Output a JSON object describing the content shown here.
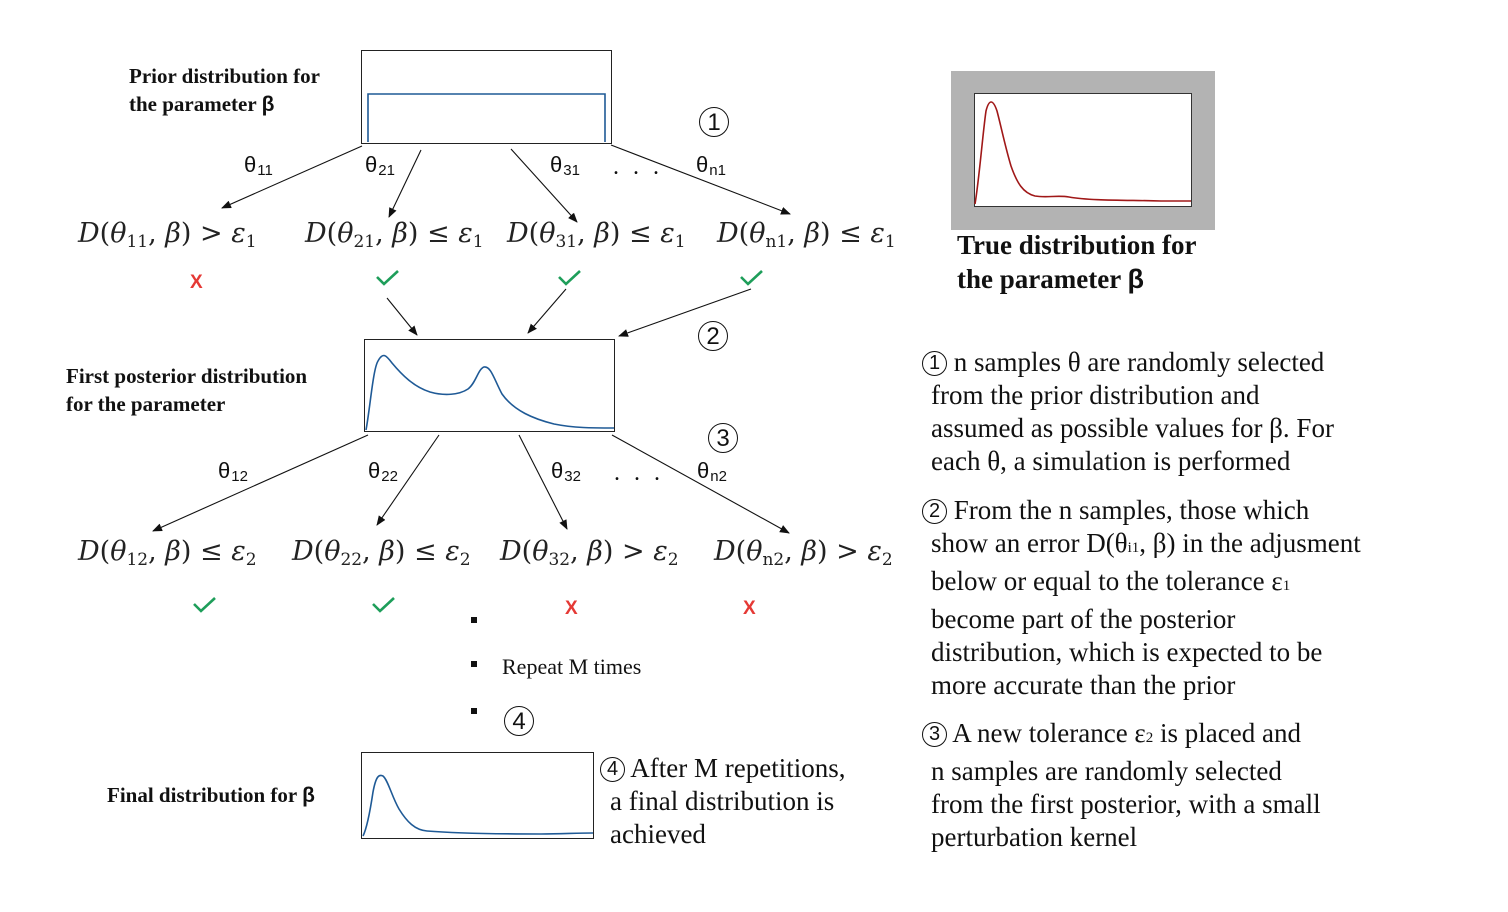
{
  "labels": {
    "prior_line1": "Prior distribution for",
    "prior_line2": "the parameter",
    "beta": "β",
    "first_posterior_line1": "First posterior distribution",
    "first_posterior_line2": "for the parameter",
    "final": "Final distribution for",
    "true_line1": "True distribution for",
    "true_line2": "the parameter",
    "repeat": "Repeat M times",
    "ellipsis": ". . ."
  },
  "row1": {
    "thetas": [
      {
        "base": "θ",
        "sub": "11"
      },
      {
        "base": "θ",
        "sub": "21"
      },
      {
        "base": "θ",
        "sub": "31"
      },
      {
        "base": "θ",
        "sub": "n1"
      }
    ],
    "conditions": [
      {
        "theta_sub": "11",
        "op": ">",
        "eps_sub": "1"
      },
      {
        "theta_sub": "21",
        "op": "≤",
        "eps_sub": "1"
      },
      {
        "theta_sub": "31",
        "op": "≤",
        "eps_sub": "1"
      },
      {
        "theta_sub": "n1",
        "op": "≤",
        "eps_sub": "1"
      }
    ],
    "marks": [
      "X",
      "check",
      "check",
      "check"
    ]
  },
  "row2": {
    "thetas": [
      {
        "base": "θ",
        "sub": "12"
      },
      {
        "base": "θ",
        "sub": "22"
      },
      {
        "base": "θ",
        "sub": "32"
      },
      {
        "base": "θ",
        "sub": "n2"
      }
    ],
    "conditions": [
      {
        "theta_sub": "12",
        "op": "≤",
        "eps_sub": "2"
      },
      {
        "theta_sub": "22",
        "op": "≤",
        "eps_sub": "2"
      },
      {
        "theta_sub": "32",
        "op": ">",
        "eps_sub": "2"
      },
      {
        "theta_sub": "n2",
        "op": ">",
        "eps_sub": "2"
      }
    ],
    "marks": [
      "check",
      "check",
      "X",
      "X"
    ]
  },
  "steps": {
    "n1": "1",
    "n2": "2",
    "n3": "3",
    "n4": "4"
  },
  "descriptions": {
    "step1": [
      "n samples θ are randomly selected",
      "from the prior distribution and",
      "assumed as possible values for β. For",
      "each θ, a simulation is performed"
    ],
    "step2_l1": "From the n samples, those which",
    "step2_l2a": "show an error D(θ",
    "step2_l2sub": "i1",
    "step2_l2b": ", β) in the adjusment",
    "step2_l3a": "below or equal to the tolerance ε",
    "step2_l3sub": "1",
    "step2_rest": [
      "become part of the posterior",
      "distribution, which is expected to be",
      "more accurate than the prior"
    ],
    "step3_l1a": "A new tolerance ε",
    "step3_l1sub": "2",
    "step3_l1b": " is placed and",
    "step3_rest": [
      "n samples are randomly selected",
      "from the first posterior, with a small",
      "perturbation kernel"
    ],
    "step4": [
      "After M repetitions,",
      "a final distribution is",
      "achieved"
    ]
  },
  "colors": {
    "curve_blue": "#1f5a96",
    "curve_red": "#a01818",
    "check_green": "#1e9e5a",
    "cross_red": "#e53935",
    "frame_gray": "#b3b3b3"
  }
}
